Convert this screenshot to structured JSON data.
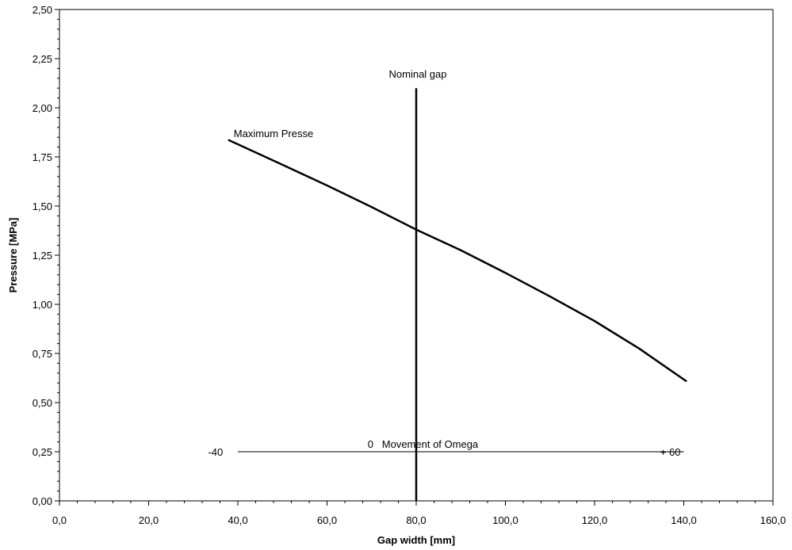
{
  "chart_data": {
    "type": "line",
    "title": "",
    "xlabel": "Gap width [mm]",
    "ylabel": "Pressure [MPa]",
    "xlim": [
      0,
      160
    ],
    "ylim": [
      0,
      2.5
    ],
    "x_ticks": [
      {
        "value": 0,
        "label": "0,0"
      },
      {
        "value": 20,
        "label": "20,0"
      },
      {
        "value": 40,
        "label": "40,0"
      },
      {
        "value": 60,
        "label": "60,0"
      },
      {
        "value": 80,
        "label": "80,0"
      },
      {
        "value": 100,
        "label": "100,0"
      },
      {
        "value": 120,
        "label": "120,0"
      },
      {
        "value": 140,
        "label": "140,0"
      },
      {
        "value": 160,
        "label": "160,0"
      }
    ],
    "y_ticks": [
      {
        "value": 0,
        "label": "0,00"
      },
      {
        "value": 0.25,
        "label": "0,25"
      },
      {
        "value": 0.5,
        "label": "0,50"
      },
      {
        "value": 0.75,
        "label": "0,75"
      },
      {
        "value": 1.0,
        "label": "1,00"
      },
      {
        "value": 1.25,
        "label": "1,25"
      },
      {
        "value": 1.5,
        "label": "1,50"
      },
      {
        "value": 1.75,
        "label": "1,75"
      },
      {
        "value": 2.0,
        "label": "2,00"
      },
      {
        "value": 2.25,
        "label": "2,25"
      },
      {
        "value": 2.5,
        "label": "2,50"
      }
    ],
    "grid": false,
    "series": [
      {
        "x": [
          38,
          50,
          60,
          70,
          80,
          90,
          100,
          110,
          120,
          130,
          140.5
        ],
        "values": [
          1.835,
          1.71,
          1.605,
          1.495,
          1.38,
          1.275,
          1.16,
          1.04,
          0.915,
          0.775,
          0.61
        ]
      }
    ],
    "reference_lines": [
      {
        "orientation": "vertical",
        "x": 80,
        "y_range": [
          0,
          2.1
        ],
        "label": "Nominal  gap"
      },
      {
        "orientation": "horizontal",
        "y": 0.25,
        "x_range": [
          40,
          140
        ]
      }
    ],
    "annotations": [
      {
        "text": "Maximum Presse",
        "x": 48,
        "y": 1.87
      },
      {
        "text": "-40",
        "x": 35,
        "y": 0.25
      },
      {
        "text": "0   Movement of Omega",
        "x": 81.5,
        "y": 0.29
      },
      {
        "text": "+ 60",
        "x": 137,
        "y": 0.25
      }
    ]
  }
}
